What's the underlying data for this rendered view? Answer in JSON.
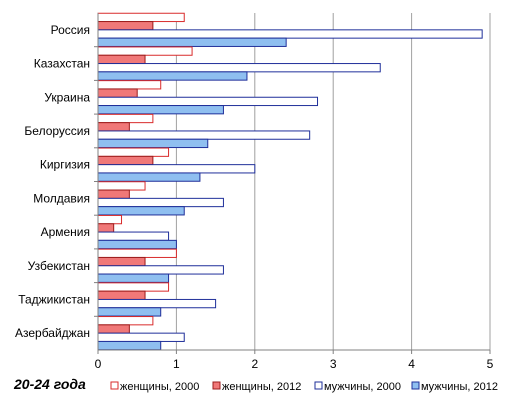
{
  "caption": "20-24 года",
  "chart_data": {
    "type": "bar",
    "orientation": "horizontal",
    "categories": [
      "Россия",
      "Казахстан",
      "Украина",
      "Белоруссия",
      "Киргизия",
      "Молдавия",
      "Армения",
      "Узбекистан",
      "Таджикистан",
      "Азербайджан"
    ],
    "series": [
      {
        "name": "женщины, 2000",
        "values": [
          1.1,
          1.2,
          0.8,
          0.7,
          0.9,
          0.6,
          0.3,
          1.0,
          0.9,
          0.7
        ],
        "stroke": "#d92b2b",
        "fill": "#ffffff"
      },
      {
        "name": "женщины, 2012",
        "values": [
          0.7,
          0.6,
          0.5,
          0.4,
          0.7,
          0.4,
          0.2,
          0.6,
          0.6,
          0.4
        ],
        "stroke": "#9b1c1c",
        "fill": "#f07878"
      },
      {
        "name": "мужчины, 2000",
        "values": [
          4.9,
          3.6,
          2.8,
          2.7,
          2.0,
          1.6,
          0.9,
          1.6,
          1.5,
          1.1
        ],
        "stroke": "#1f2f9a",
        "fill": "#ffffff"
      },
      {
        "name": "мужчины, 2012",
        "values": [
          2.4,
          1.9,
          1.6,
          1.4,
          1.3,
          1.1,
          1.0,
          0.9,
          0.8,
          0.8
        ],
        "stroke": "#1f2f9a",
        "fill": "#8fbff0"
      }
    ],
    "xlim": [
      0,
      5
    ],
    "xticks": [
      "0",
      "1",
      "2",
      "3",
      "4",
      "5"
    ],
    "grid": true,
    "legend_position": "bottom"
  }
}
